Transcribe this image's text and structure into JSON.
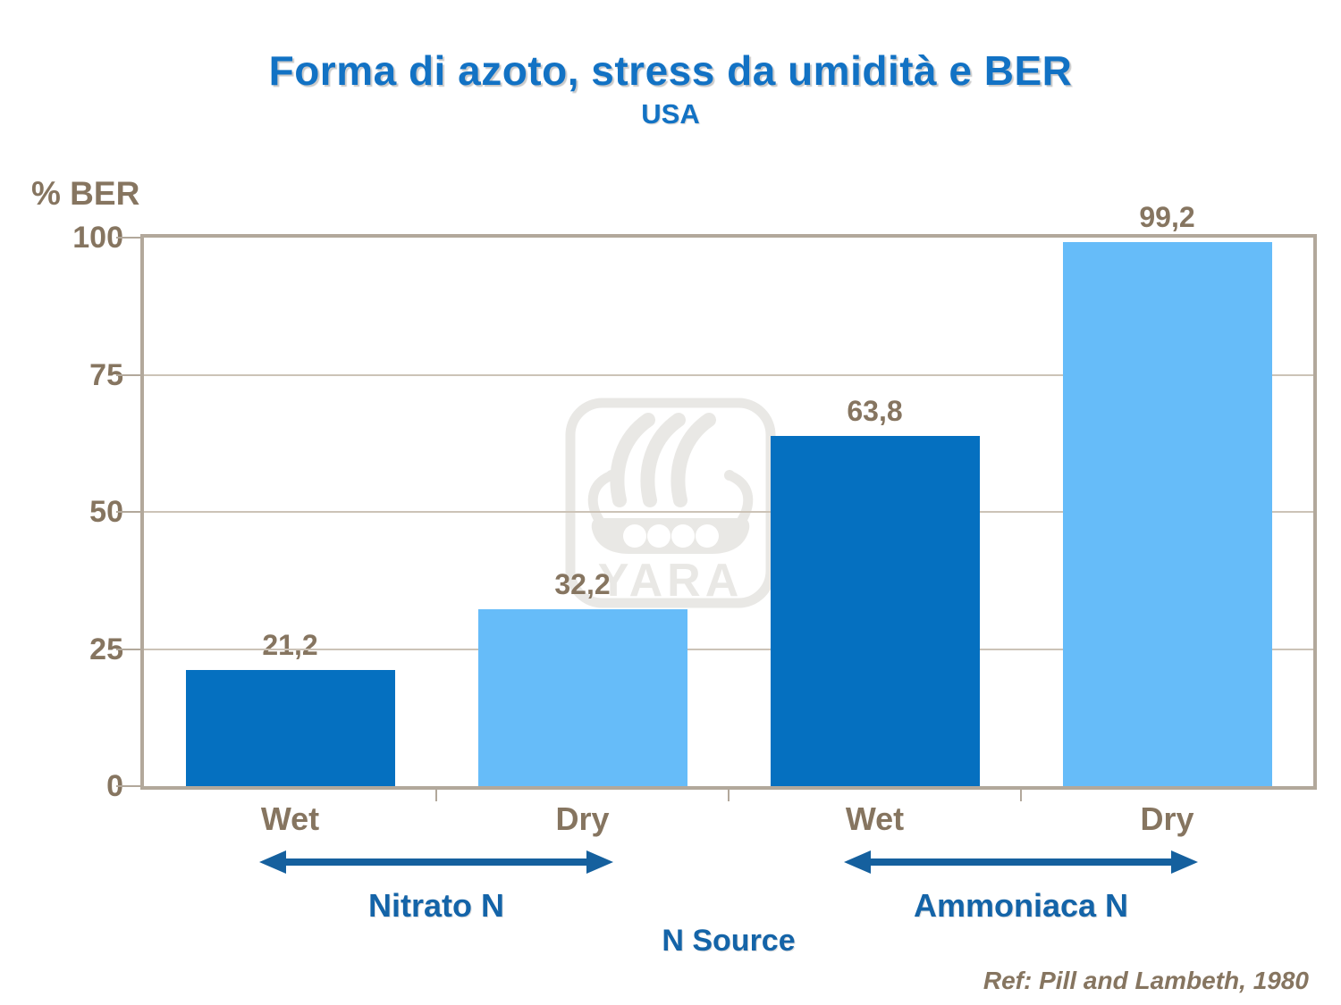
{
  "title": {
    "text": "Forma di azoto, stress da umidità e BER",
    "subtitle": "USA"
  },
  "y_axis": {
    "label": "% BER"
  },
  "x_axis": {
    "title": "N Source"
  },
  "footer": {
    "reference": "Ref: Pill and Lambeth, 1980"
  },
  "watermark": {
    "text": "YARA"
  },
  "colors": {
    "wet_bar": "#0570C0",
    "dry_bar": "#66BCF9",
    "title_blue": "#1272C4",
    "label_blue": "#1464A8",
    "arrow_blue": "#15609E",
    "text_brown": "#867560",
    "frame": "#B2A89B",
    "gridline": "#CCC3B7",
    "watermark_gray": "#E9E8E5"
  },
  "chart_data": {
    "type": "bar",
    "title": "Forma di azoto, stress da umidità e BER",
    "subtitle": "USA",
    "categories": [
      "Wet",
      "Dry",
      "Wet",
      "Dry"
    ],
    "values": [
      21.2,
      32.2,
      63.8,
      99.2
    ],
    "value_labels": [
      "21,2",
      "32,2",
      "63,8",
      "99,2"
    ],
    "bar_palette_keys": [
      "wet_bar",
      "dry_bar",
      "wet_bar",
      "dry_bar"
    ],
    "groups": [
      {
        "label": "Nitrato N",
        "categories": [
          0,
          1
        ]
      },
      {
        "label": "Ammoniaca N",
        "categories": [
          2,
          3
        ]
      }
    ],
    "xlabel": "N Source",
    "ylabel": "% BER",
    "ylim": [
      0,
      100
    ],
    "yticks": [
      0,
      25,
      50,
      75,
      100
    ],
    "grid": "horizontal",
    "legend": "none",
    "reference": "Ref: Pill and Lambeth, 1980"
  }
}
